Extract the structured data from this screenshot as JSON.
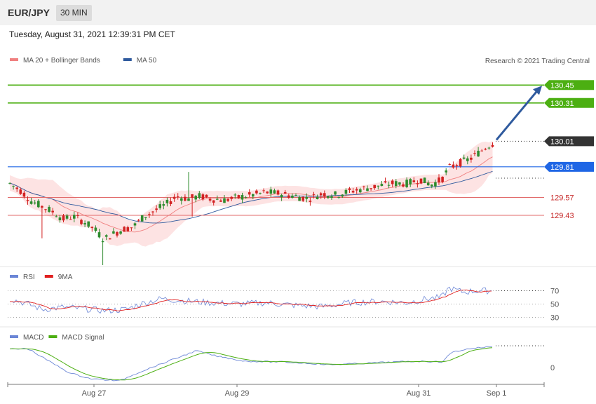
{
  "header": {
    "symbol": "EUR/JPY",
    "timeframe": "30 MIN",
    "datetime": "Tuesday, August 31, 2021 12:39:31 PM CET"
  },
  "colors": {
    "ma20": "#f08080",
    "ma50": "#2f5a9e",
    "band_fill": "#fde3e3",
    "bull": "#2e8b2e",
    "bear": "#d22222",
    "resistance": "#4caf12",
    "pivot": "#1f66e5",
    "support": "#e26a6a",
    "last": "#333333",
    "arrow": "#2f5a9e",
    "rsi": "#6b86d6",
    "rsi_ma": "#e02020",
    "macd": "#6b86d6",
    "macd_signal": "#4caf12"
  },
  "chart_data": [
    {
      "type": "candlestick",
      "legend": [
        {
          "name": "MA 20 + Bollinger Bands",
          "color": "#f08080"
        },
        {
          "name": "MA 50",
          "color": "#2f5a9e"
        }
      ],
      "copyright": "Research © 2021 Trading Central",
      "ylim": [
        129.04,
        130.6
      ],
      "levels": [
        {
          "value": 130.45,
          "label": "130.45",
          "kind": "resistance"
        },
        {
          "value": 130.31,
          "label": "130.31",
          "kind": "resistance"
        },
        {
          "value": 130.01,
          "label": "130.01",
          "kind": "last"
        },
        {
          "value": 129.81,
          "label": "129.81",
          "kind": "pivot"
        },
        {
          "value": 129.57,
          "label": "129.57",
          "kind": "support"
        },
        {
          "value": 129.43,
          "label": "129.43",
          "kind": "support"
        }
      ],
      "x_ticks": [
        "Aug 27",
        "Aug 29",
        "Aug 31",
        "Sep 1"
      ],
      "target": 130.45
    },
    {
      "type": "line",
      "legend": [
        {
          "name": "RSI",
          "color": "#6b86d6"
        },
        {
          "name": "9MA",
          "color": "#e02020"
        }
      ],
      "ylim": [
        22,
        80
      ],
      "ticks": [
        "70",
        "50",
        "30"
      ]
    },
    {
      "type": "line",
      "legend": [
        {
          "name": "MACD",
          "color": "#6b86d6"
        },
        {
          "name": "MACD Signal",
          "color": "#4caf12"
        }
      ],
      "ticks": [
        "0"
      ]
    }
  ]
}
